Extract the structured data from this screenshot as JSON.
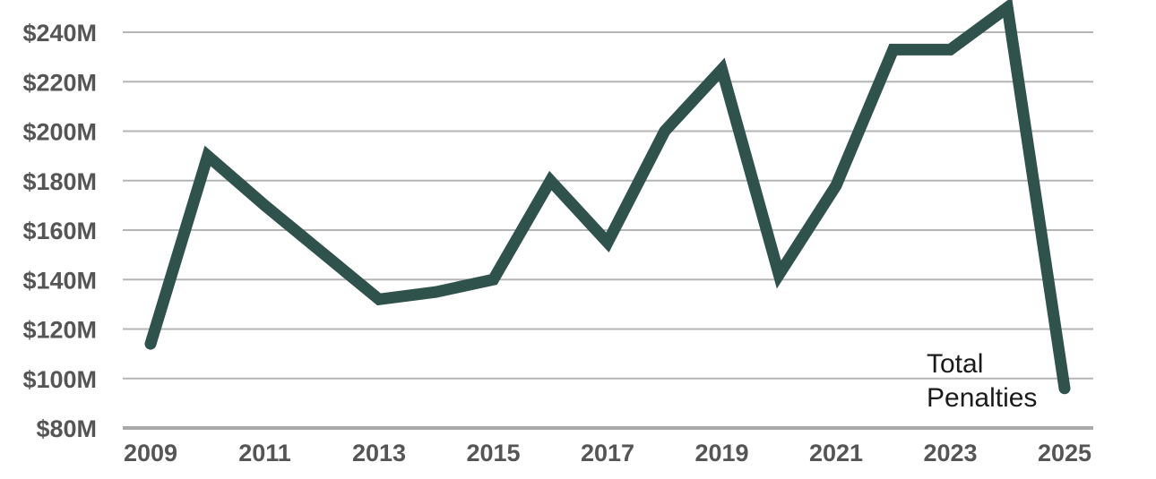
{
  "chart_data": {
    "type": "line",
    "title": "",
    "xlabel": "",
    "ylabel": "",
    "x_tick_labels": [
      "2009",
      "2011",
      "2013",
      "2015",
      "2017",
      "2019",
      "2021",
      "2023",
      "2025"
    ],
    "y_tick_labels": [
      "$80M",
      "$100M",
      "$120M",
      "$140M",
      "$160M",
      "$180M",
      "$200M",
      "$220M",
      "$240M"
    ],
    "xlim": [
      2009,
      2025
    ],
    "ylim": [
      80,
      240
    ],
    "grid": "horizontal",
    "legend": "none",
    "annotation": [
      "Total",
      "Penalties"
    ],
    "series": [
      {
        "color": "#2f524c",
        "x": [
          2009,
          2010,
          2011,
          2012,
          2013,
          2014,
          2015,
          2016,
          2017,
          2018,
          2019,
          2020,
          2021,
          2022,
          2023,
          2024,
          2025
        ],
        "values": [
          114,
          190,
          170,
          151,
          132,
          135,
          140,
          180,
          155,
          200,
          225,
          142,
          178,
          233,
          233,
          250,
          96
        ]
      }
    ]
  }
}
